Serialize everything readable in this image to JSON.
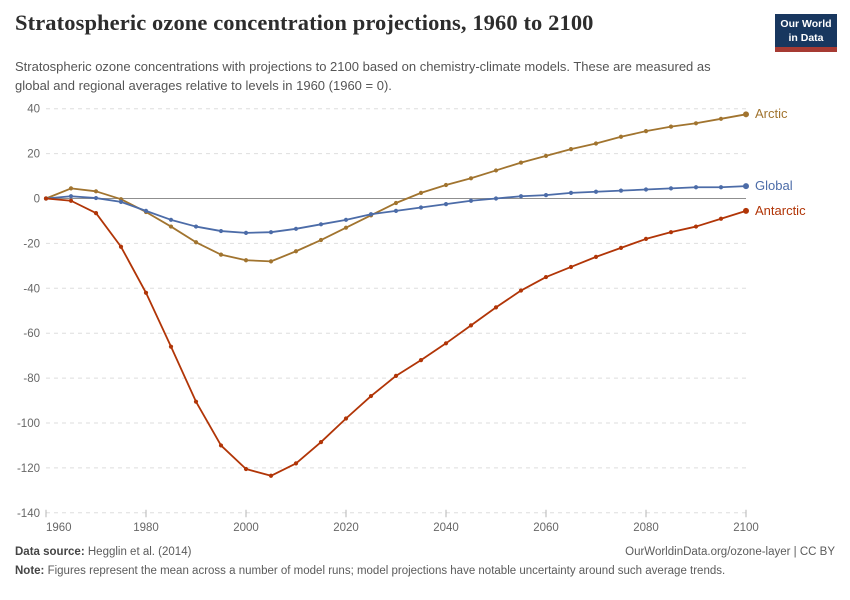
{
  "header": {
    "title": "Stratospheric ozone concentration projections, 1960 to 2100",
    "subtitle": "Stratospheric ozone concentrations with projections to 2100 based on chemistry-climate models. These are measured as global and regional averages relative to levels in 1960 (1960 = 0).",
    "logo": {
      "line1": "Our World",
      "line2": "in Data",
      "bg_color": "#18375F",
      "bar_color": "#A63A33"
    }
  },
  "chart_data": {
    "type": "line",
    "title": "Stratospheric ozone concentration projections, 1960 to 2100",
    "xlabel": "",
    "ylabel": "",
    "ylim": [
      -140,
      40
    ],
    "xlim": [
      1960,
      2100
    ],
    "grid": "horizontal-dashed",
    "legend_position": "right-end-labels",
    "yticks": [
      40,
      20,
      0,
      -20,
      -40,
      -60,
      -80,
      -100,
      -120,
      -140
    ],
    "xticks": [
      1960,
      1980,
      2000,
      2020,
      2040,
      2060,
      2080,
      2100
    ],
    "x": [
      1960,
      1965,
      1970,
      1975,
      1980,
      1985,
      1990,
      1995,
      2000,
      2005,
      2010,
      2015,
      2020,
      2025,
      2030,
      2035,
      2040,
      2045,
      2050,
      2055,
      2060,
      2065,
      2070,
      2075,
      2080,
      2085,
      2090,
      2095,
      2100
    ],
    "series": [
      {
        "name": "Arctic",
        "color": "#A1742F",
        "values": [
          0,
          4.5,
          3.2,
          -0.3,
          -6,
          -12.5,
          -19.5,
          -25,
          -27.5,
          -28,
          -23.5,
          -18.5,
          -13,
          -7.5,
          -2,
          2.5,
          6,
          9,
          12.5,
          16,
          19,
          22,
          24.5,
          27.5,
          30,
          32,
          33.5,
          35.5,
          37.5
        ]
      },
      {
        "name": "Global",
        "color": "#4C6CA8",
        "values": [
          0,
          1,
          0.2,
          -1.5,
          -5.5,
          -9.5,
          -12.5,
          -14.5,
          -15.3,
          -15,
          -13.5,
          -11.5,
          -9.5,
          -7,
          -5.5,
          -4,
          -2.5,
          -1,
          0,
          1,
          1.5,
          2.5,
          3,
          3.5,
          4,
          4.5,
          5,
          5,
          5.5
        ]
      },
      {
        "name": "Antarctic",
        "color": "#B13507",
        "values": [
          0,
          -1,
          -6.5,
          -21.5,
          -42,
          -66,
          -90.5,
          -110,
          -120.5,
          -123.5,
          -118,
          -108.5,
          -98,
          -88,
          -79,
          -72,
          -64.5,
          -56.5,
          -48.5,
          -41,
          -35,
          -30.5,
          -26,
          -22,
          -18,
          -15,
          -12.5,
          -9,
          -5.5
        ]
      }
    ],
    "zero_line_color": "#8f8f8f",
    "gridline_color": "#dedede",
    "tick_label_color": "#676767"
  },
  "footer": {
    "datasource_label": "Data source:",
    "datasource_value": " Hegglin et al. (2014)",
    "link": "OurWorldinData.org/ozone-layer | CC BY",
    "note_label": "Note:",
    "note_value": " Figures represent the mean across a number of model runs; model projections have notable uncertainty around such average trends."
  }
}
